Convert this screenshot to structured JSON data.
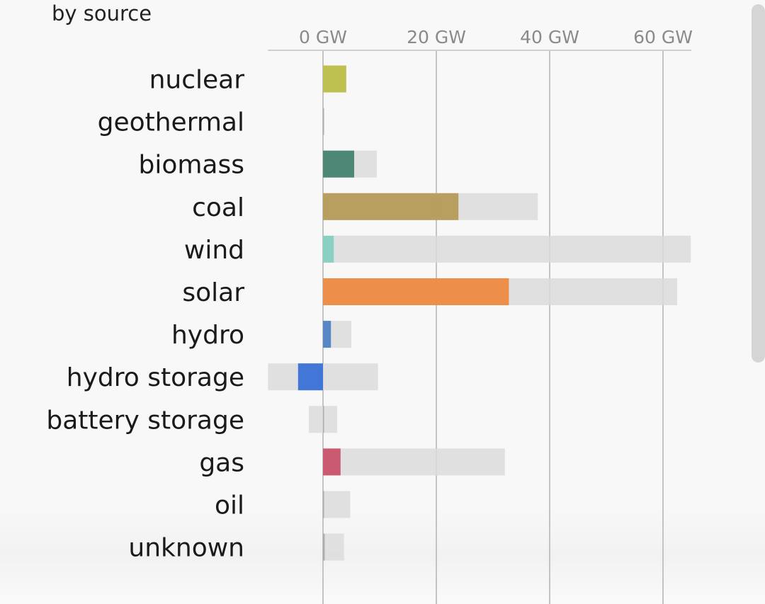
{
  "colors": {
    "background": "#f8f8f8",
    "capacity_bar": "#dcdcdc",
    "grid": "#c4c4c4",
    "axis_text": "#8a8a8a",
    "label_text": "#1a1a1a"
  },
  "chart_data": {
    "type": "bar",
    "orientation": "horizontal",
    "title": "by source",
    "x_tick_labels": [
      "0 GW",
      "20 GW",
      "40 GW",
      "60 GW"
    ],
    "x_ticks": [
      0,
      20,
      40,
      60
    ],
    "xlim": [
      -9.7,
      65
    ],
    "grid": true,
    "categories": [
      "nuclear",
      "geothermal",
      "biomass",
      "coal",
      "wind",
      "solar",
      "hydro",
      "hydro storage",
      "battery storage",
      "gas",
      "oil",
      "unknown"
    ],
    "series": [
      {
        "role": "generation",
        "values": [
          4.1,
          0.1,
          5.5,
          23.9,
          1.9,
          32.8,
          1.4,
          -4.4,
          0,
          3.1,
          0,
          0.3
        ],
        "colors": [
          "#bcbf47",
          "#aaaaaa",
          "#458270",
          "#b59b58",
          "#86cfc3",
          "#ed8a42",
          "#4f83c4",
          "#3a71d6",
          "#aaaaaa",
          "#c85269",
          "#aaaaaa",
          "#aaaaaa"
        ]
      },
      {
        "role": "capacity",
        "ranges": [
          [
            0,
            4.1
          ],
          [
            0,
            0.1
          ],
          [
            0,
            9.5
          ],
          [
            0,
            37.9
          ],
          [
            0,
            64.9
          ],
          [
            0,
            62.5
          ],
          [
            0,
            5
          ],
          [
            -9.7,
            9.7
          ],
          [
            -2.5,
            2.5
          ],
          [
            0,
            32.1
          ],
          [
            0,
            4.8
          ],
          [
            0,
            3.7
          ]
        ]
      }
    ]
  }
}
